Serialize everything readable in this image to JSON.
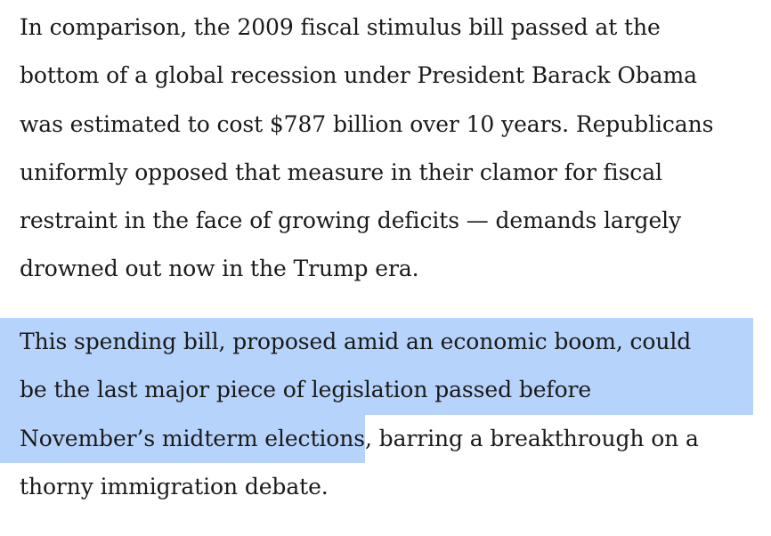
{
  "article": {
    "paragraphs": [
      {
        "lines": [
          "In comparison, the 2009 fiscal stimulus bill passed at the",
          "bottom of a global recession under President Barack Obama",
          "was estimated to cost $787 billion over 10 years. Republicans",
          "uniformly opposed that measure in their clamor for fiscal",
          "restraint in the face of growing deficits — demands largely",
          "drowned out now in the Trump era."
        ]
      },
      {
        "lines": [
          "This spending bill, proposed amid an economic boom, could",
          "be the last major piece of legislation passed before"
        ],
        "line3_selected": "November’s midterm elections",
        "line3_rest": ", barring a breakthrough on a",
        "line4": "thorny immigration debate."
      }
    ],
    "selection_color": "#b6d3fb"
  }
}
